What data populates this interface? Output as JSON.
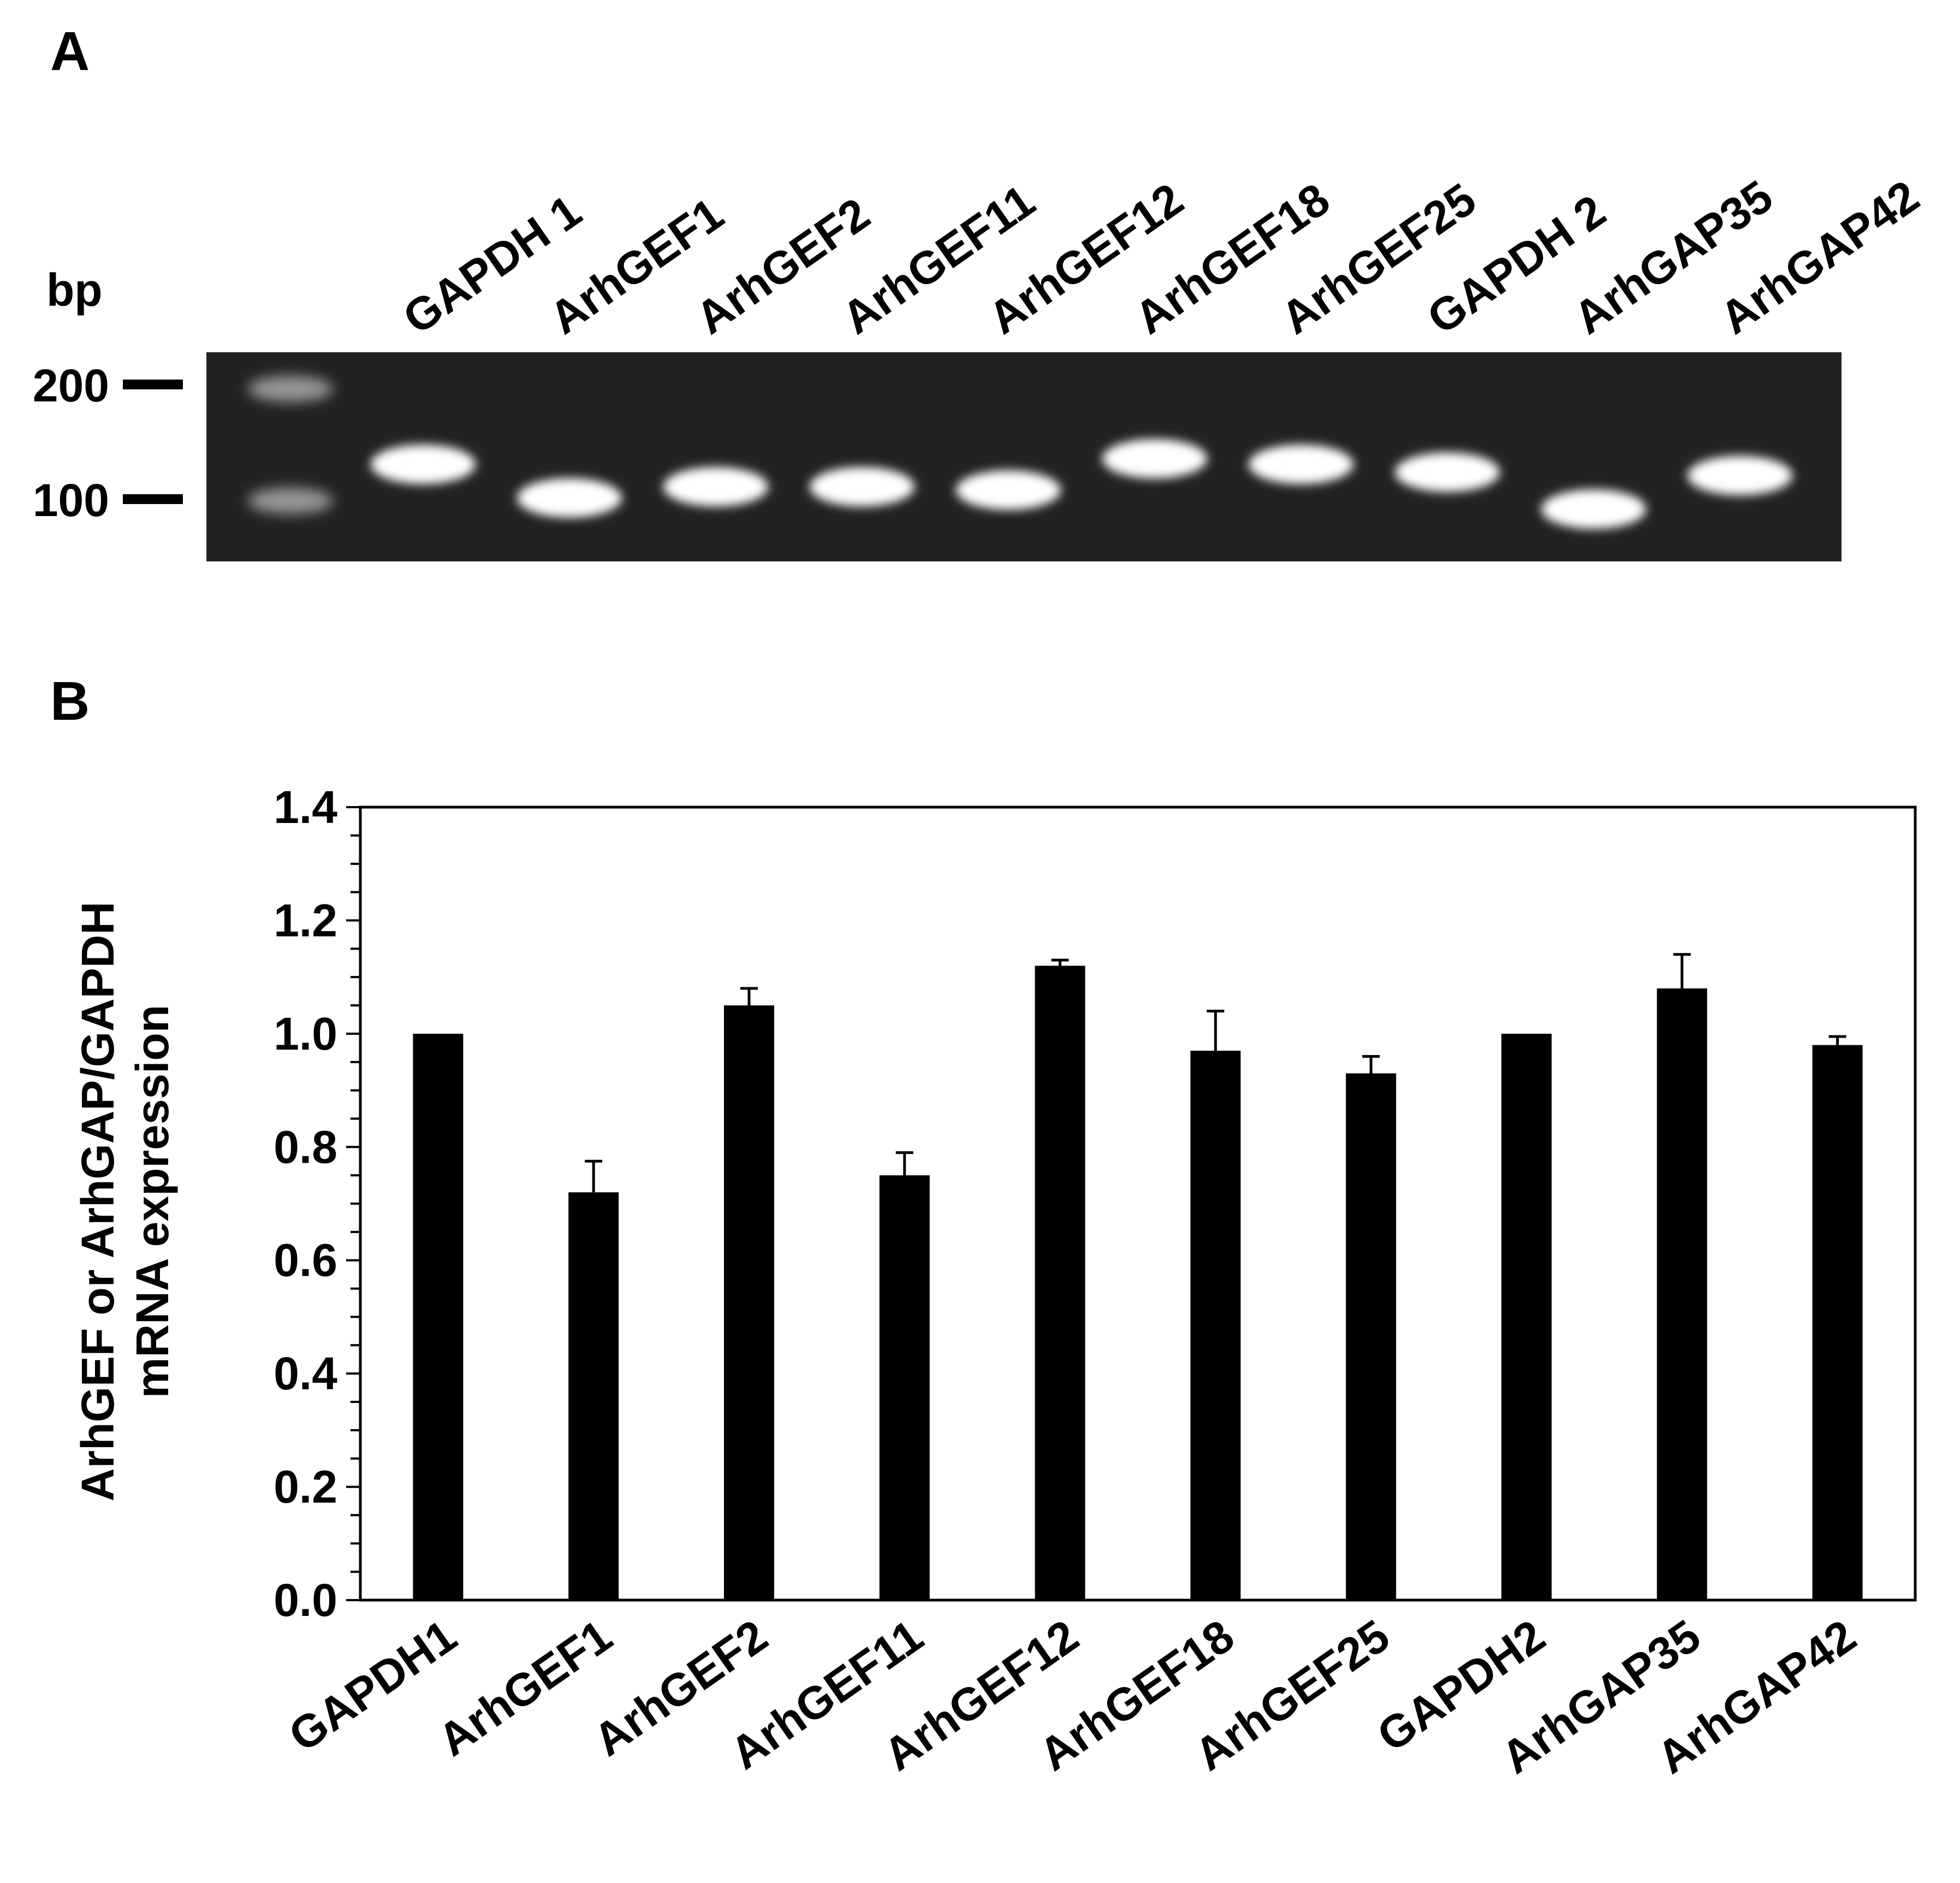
{
  "panel_a": {
    "label": "A",
    "unit_label": "bp",
    "markers": [
      "200",
      "100"
    ],
    "lanes": [
      "GAPDH 1",
      "ArhGEF1",
      "ArhGEF2",
      "ArhGEF11",
      "ArhGEF12",
      "ArhGEF18",
      "ArhGEF25",
      "GAPDH 2",
      "ArhGAP35",
      "ArhGAP42"
    ],
    "band_sizes_bp": [
      135,
      105,
      115,
      115,
      112,
      140,
      135,
      128,
      95,
      125
    ],
    "gel_color": "#222222"
  },
  "panel_b": {
    "label": "B"
  },
  "chart_data": {
    "type": "bar",
    "categories": [
      "GAPDH1",
      "ArhGEF1",
      "ArhGEF2",
      "ArhGEF11",
      "ArhGEF12",
      "ArhGEF18",
      "ArhGEF25",
      "GAPDH2",
      "ArhGAP35",
      "ArhGAP42"
    ],
    "values": [
      1.0,
      0.72,
      1.05,
      0.75,
      1.12,
      0.97,
      0.93,
      1.0,
      1.08,
      0.98
    ],
    "errors": [
      0.0,
      0.055,
      0.03,
      0.04,
      0.01,
      0.07,
      0.03,
      0.0,
      0.06,
      0.015
    ],
    "ylabel_line1": "ArhGEF or ArhGAP/GAPDH",
    "ylabel_line2": "mRNA expression",
    "ylim": [
      0,
      1.4
    ],
    "yticks": [
      "0.0",
      "0.2",
      "0.4",
      "0.6",
      "0.8",
      "1.0",
      "1.2",
      "1.4"
    ],
    "bar_color": "#000000"
  }
}
